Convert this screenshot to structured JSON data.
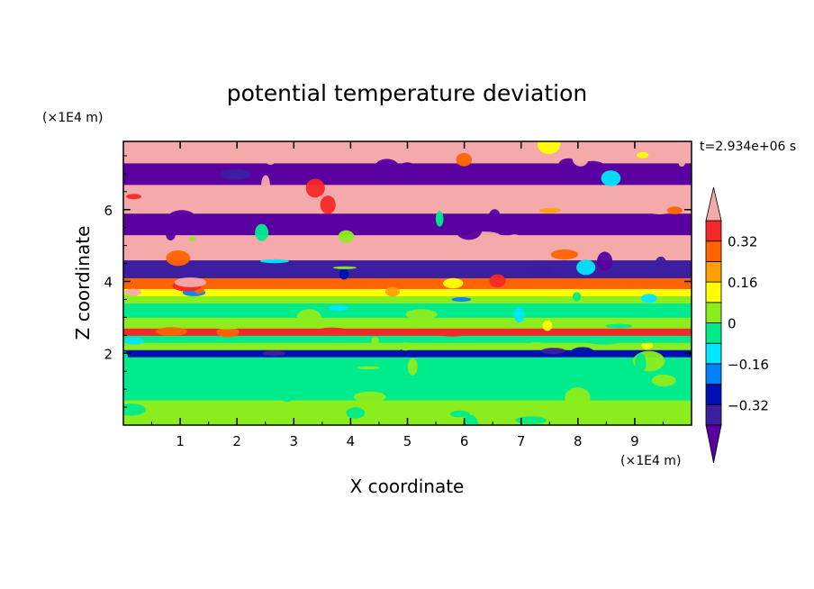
{
  "chart_data": {
    "type": "heatmap",
    "title": "potential temperature deviation",
    "xlabel": "X coordinate",
    "ylabel": "Z coordinate",
    "x_unit": "(×1E4 m)",
    "y_unit": "(×1E4 m)",
    "time_label": "t=2.934e+06 s",
    "xlim": [
      0,
      10
    ],
    "ylim": [
      0,
      7.9
    ],
    "x_ticks": [
      1,
      2,
      3,
      4,
      5,
      6,
      7,
      8,
      9
    ],
    "y_ticks": [
      2,
      4,
      6
    ],
    "x_tick_labels": [
      "1",
      "2",
      "3",
      "4",
      "5",
      "6",
      "7",
      "8",
      "9"
    ],
    "y_tick_labels": [
      "2",
      "4",
      "6"
    ],
    "colorbar": {
      "levels": [
        -0.4,
        -0.32,
        -0.24,
        -0.16,
        -0.08,
        0,
        0.08,
        0.16,
        0.24,
        0.32,
        0.4
      ],
      "tick_values": [
        0.32,
        0.16,
        0,
        -0.16,
        -0.32
      ],
      "tick_labels": [
        "0.32",
        "0.16",
        "0",
        "−0.16",
        "−0.32"
      ],
      "colors": [
        "#5a00a0",
        "#3c1ea0",
        "#0010b4",
        "#0082ff",
        "#00e6ff",
        "#00eb8c",
        "#8ced1e",
        "#ffff00",
        "#ffa000",
        "#ff6400",
        "#f52828",
        "#f4aaaa"
      ]
    },
    "bands": [
      {
        "z0": 0.0,
        "z1": 0.7,
        "value": 0.02
      },
      {
        "z0": 0.7,
        "z1": 1.9,
        "value": -0.04
      },
      {
        "z0": 1.9,
        "z1": 2.1,
        "value": -0.3
      },
      {
        "z0": 2.1,
        "z1": 2.3,
        "value": 0.05
      },
      {
        "z0": 2.3,
        "z1": 2.5,
        "value": -0.02
      },
      {
        "z0": 2.5,
        "z1": 2.7,
        "value": 0.35
      },
      {
        "z0": 2.7,
        "z1": 3.0,
        "value": 0.03
      },
      {
        "z0": 3.0,
        "z1": 3.4,
        "value": -0.03
      },
      {
        "z0": 3.4,
        "z1": 3.6,
        "value": 0.05
      },
      {
        "z0": 3.6,
        "z1": 3.8,
        "value": 0.12
      },
      {
        "z0": 3.8,
        "z1": 4.1,
        "value": 0.28
      },
      {
        "z0": 4.1,
        "z1": 4.6,
        "value": -0.36
      },
      {
        "z0": 4.6,
        "z1": 5.3,
        "value": 0.45
      },
      {
        "z0": 5.3,
        "z1": 5.9,
        "value": -0.45
      },
      {
        "z0": 5.9,
        "z1": 6.7,
        "value": 0.45
      },
      {
        "z0": 6.7,
        "z1": 7.3,
        "value": -0.45
      },
      {
        "z0": 7.3,
        "z1": 7.9,
        "value": 0.45
      }
    ]
  }
}
